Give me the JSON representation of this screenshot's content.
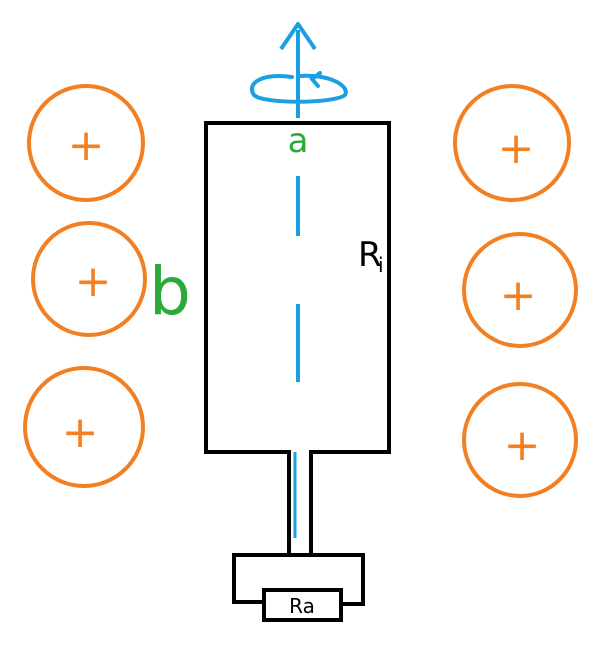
{
  "labels": {
    "a": "a",
    "b": "b",
    "ri_main": "R",
    "ri_sub": "i",
    "ra": "Ra"
  },
  "colors": {
    "charge": "#F28023",
    "body": "#000000",
    "axis": "#1A9FE3",
    "label_green": "#2BAA3B"
  },
  "charges": {
    "left_symbols": [
      "+",
      "+",
      "+"
    ],
    "right_symbols": [
      "+",
      "+",
      "+"
    ]
  },
  "icons": {
    "rotation": "rotation-arrow-icon",
    "axis_arrow": "arrow-up-icon"
  }
}
